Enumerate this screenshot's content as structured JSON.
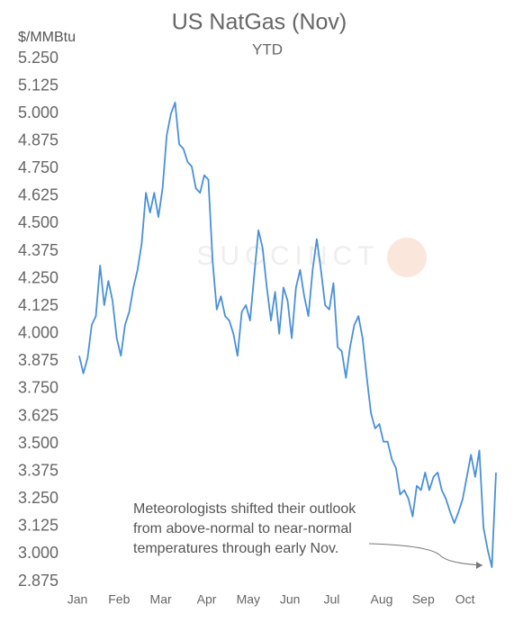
{
  "chart_data": {
    "type": "line",
    "title": "US NatGas (Nov)",
    "subtitle": "YTD",
    "y_label": "$/MMBtu",
    "watermark": "SUCCINCT",
    "annotation": [
      "Meteorologists shifted their outlook",
      "from above-normal to near-normal",
      "temperatures through early Nov."
    ],
    "categories": [
      "Jan",
      null,
      null,
      null,
      null,
      null,
      null,
      null,
      null,
      null,
      "Feb",
      null,
      null,
      null,
      null,
      null,
      null,
      null,
      null,
      null,
      "Mar",
      null,
      null,
      null,
      null,
      null,
      null,
      null,
      null,
      null,
      null,
      "Apr",
      null,
      null,
      null,
      null,
      null,
      null,
      null,
      null,
      null,
      "May",
      null,
      null,
      null,
      null,
      null,
      null,
      null,
      null,
      null,
      "Jun",
      null,
      null,
      null,
      null,
      null,
      null,
      null,
      null,
      null,
      "Jul",
      null,
      null,
      null,
      null,
      null,
      null,
      null,
      null,
      null,
      null,
      null,
      "Aug",
      null,
      null,
      null,
      null,
      null,
      null,
      null,
      null,
      null,
      "Sep",
      null,
      null,
      null,
      null,
      null,
      null,
      null,
      null,
      null,
      "Oct",
      null,
      null,
      null,
      null,
      null,
      null,
      null
    ],
    "series": [
      {
        "name": "US NatGas (Nov)",
        "color": "#4a90d9",
        "values": [
          3.9,
          3.82,
          3.89,
          4.04,
          4.08,
          4.31,
          4.13,
          4.24,
          4.15,
          3.98,
          3.9,
          4.04,
          4.1,
          4.21,
          4.29,
          4.41,
          4.64,
          4.55,
          4.64,
          4.53,
          4.66,
          4.9,
          5.0,
          5.05,
          4.86,
          4.84,
          4.78,
          4.76,
          4.66,
          4.64,
          4.72,
          4.7,
          4.33,
          4.11,
          4.17,
          4.08,
          4.06,
          4.0,
          3.9,
          4.1,
          4.13,
          4.06,
          4.27,
          4.47,
          4.39,
          4.21,
          4.06,
          4.19,
          4.0,
          4.21,
          4.15,
          3.98,
          4.21,
          4.29,
          4.17,
          4.08,
          4.29,
          4.43,
          4.29,
          4.13,
          4.11,
          4.23,
          3.94,
          3.92,
          3.8,
          3.94,
          4.04,
          4.08,
          3.98,
          3.8,
          3.64,
          3.57,
          3.59,
          3.51,
          3.51,
          3.43,
          3.39,
          3.27,
          3.29,
          3.25,
          3.17,
          3.31,
          3.29,
          3.37,
          3.29,
          3.35,
          3.37,
          3.29,
          3.25,
          3.19,
          3.14,
          3.19,
          3.25,
          3.35,
          3.45,
          3.35,
          3.47,
          3.12,
          3.02,
          2.94,
          3.37
        ]
      }
    ],
    "ylim": [
      2.875,
      5.25
    ],
    "yticks": [
      {
        "value": 5.25,
        "label": "5.250"
      },
      5.125,
      {
        "value": 5,
        "label": "5.000"
      },
      4.875,
      {
        "value": 4.75,
        "label": "4.750"
      },
      4.625,
      {
        "value": 4.5,
        "label": "4.500"
      },
      4.375,
      {
        "value": 4.25,
        "label": "4.250"
      },
      4.125,
      {
        "value": 4,
        "label": "4.000"
      },
      3.875,
      {
        "value": 3.75,
        "label": "3.750"
      },
      3.625,
      {
        "value": 3.5,
        "label": "3.500"
      },
      3.375,
      {
        "value": 3.25,
        "label": "3.250"
      },
      3.125,
      {
        "value": 3,
        "label": "3.000"
      },
      2.875
    ],
    "grid": false
  }
}
